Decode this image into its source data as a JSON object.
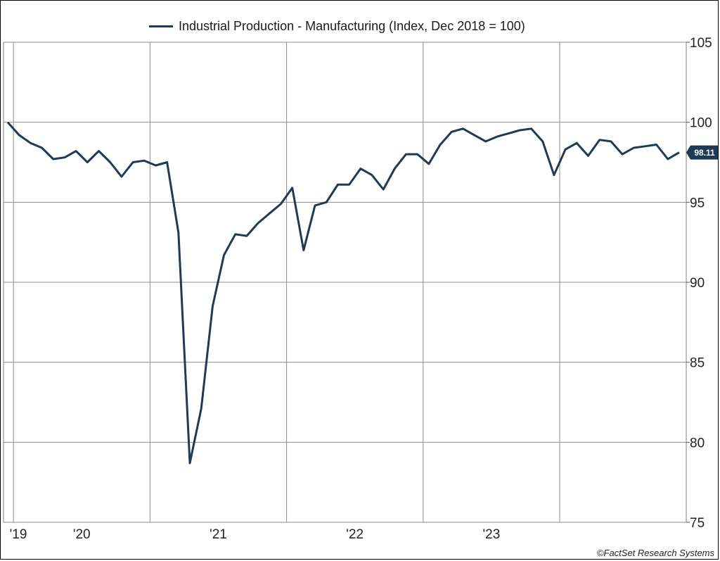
{
  "chart_data": {
    "type": "line",
    "title": "",
    "xlabel": "",
    "ylabel": "",
    "x_ticks": [
      "'19",
      "'20",
      "'21",
      "'22",
      "'23"
    ],
    "y_ticks": [
      75,
      80,
      85,
      90,
      95,
      100,
      105
    ],
    "ylim": [
      75,
      105
    ],
    "xlim": [
      "2018-12",
      "2023-11"
    ],
    "grid": true,
    "legend_position": "top",
    "last_value_label": "98.11",
    "series": [
      {
        "name": "Industrial Production - Manufacturing (Index, Dec 2018 = 100)",
        "color": "#1f3a55",
        "x": [
          "2018-12",
          "2019-01",
          "2019-02",
          "2019-03",
          "2019-04",
          "2019-05",
          "2019-06",
          "2019-07",
          "2019-08",
          "2019-09",
          "2019-10",
          "2019-11",
          "2019-12",
          "2020-01",
          "2020-02",
          "2020-03",
          "2020-04",
          "2020-05",
          "2020-06",
          "2020-07",
          "2020-08",
          "2020-09",
          "2020-10",
          "2020-11",
          "2020-12",
          "2021-01",
          "2021-02",
          "2021-03",
          "2021-04",
          "2021-05",
          "2021-06",
          "2021-07",
          "2021-08",
          "2021-09",
          "2021-10",
          "2021-11",
          "2021-12",
          "2022-01",
          "2022-02",
          "2022-03",
          "2022-04",
          "2022-05",
          "2022-06",
          "2022-07",
          "2022-08",
          "2022-09",
          "2022-10",
          "2022-11",
          "2022-12",
          "2023-01",
          "2023-02",
          "2023-03",
          "2023-04",
          "2023-05",
          "2023-06",
          "2023-07",
          "2023-08",
          "2023-09",
          "2023-10",
          "2023-11"
        ],
        "values": [
          100.0,
          99.2,
          98.7,
          98.4,
          97.7,
          97.8,
          98.2,
          97.5,
          98.2,
          97.5,
          96.6,
          97.5,
          97.6,
          97.3,
          97.5,
          93.1,
          78.7,
          82.1,
          88.5,
          91.7,
          93.0,
          92.9,
          93.7,
          94.3,
          94.9,
          95.9,
          92.0,
          94.8,
          95.0,
          96.1,
          96.1,
          97.1,
          96.7,
          95.8,
          97.1,
          98.0,
          98.0,
          97.4,
          98.6,
          99.4,
          99.6,
          99.2,
          98.8,
          99.1,
          99.3,
          99.5,
          99.6,
          98.8,
          96.7,
          98.3,
          98.7,
          97.9,
          98.9,
          98.8,
          98.0,
          98.4,
          98.5,
          98.6,
          97.7,
          98.11
        ]
      }
    ]
  },
  "legend": {
    "label": "Industrial Production - Manufacturing (Index, Dec 2018 = 100)",
    "color": "#1f3a55"
  },
  "credit": "©FactSet Research Systems"
}
